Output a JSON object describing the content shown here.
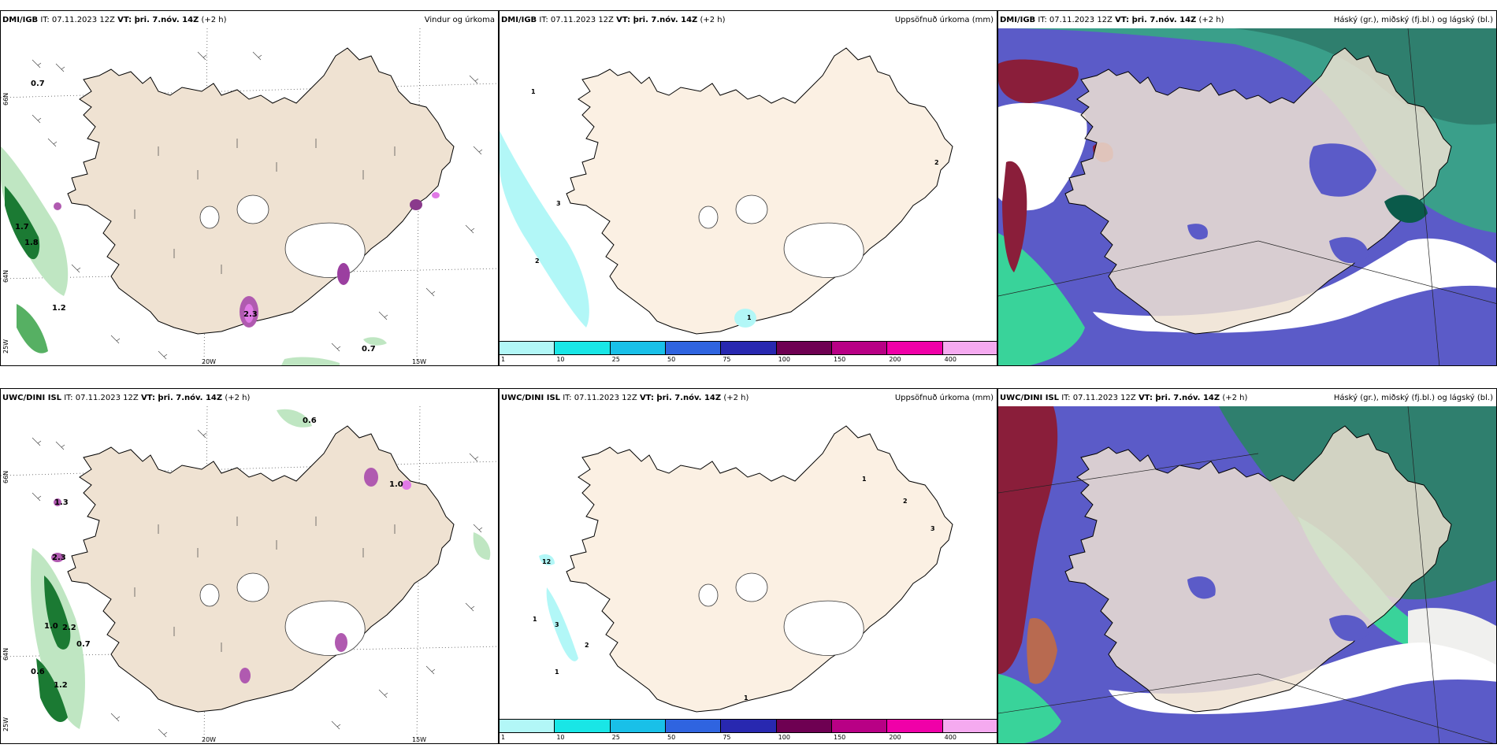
{
  "panels": [
    {
      "model": "DMI/IGB",
      "valid": "IT: 07.11.2023 12Z",
      "vt_label": "VT: þri. 7.nóv. 14Z",
      "lead": "(+2 h)",
      "right": "Vindur og úrkoma"
    },
    {
      "model": "DMI/IGB",
      "valid": "IT: 07.11.2023 12Z",
      "vt_label": "VT: þri. 7.nóv. 14Z",
      "lead": "(+2 h)",
      "right": "Uppsöfnuð úrkoma (mm)"
    },
    {
      "model": "DMI/IGB",
      "valid": "IT: 07.11.2023 12Z",
      "vt_label": "VT: þri. 7.nóv. 14Z",
      "lead": "(+2 h)",
      "right": "Háský (gr.), miðský (fj.bl.) og lágský (bl.)"
    },
    {
      "model": "UWC/DINI ISL",
      "valid": "IT: 07.11.2023 12Z",
      "vt_label": "VT: þri. 7.nóv. 14Z",
      "lead": "(+2 h)",
      "right": ""
    },
    {
      "model": "UWC/DINI ISL",
      "valid": "IT: 07.11.2023 12Z",
      "vt_label": "VT: þri. 7.nóv. 14Z",
      "lead": "(+2 h)",
      "right": "Uppsöfnuð úrkoma (mm)"
    },
    {
      "model": "UWC/DINI ISL",
      "valid": "IT: 07.11.2023 12Z",
      "vt_label": "VT: þri. 7.nóv. 14Z",
      "lead": "(+2 h)",
      "right": "Háský (gr.), miðský (fj.bl.) og lágský (bl.)"
    }
  ],
  "axis_labels": {
    "lon_20w": "20W",
    "lon_15w": "15W",
    "lat_66n": "66N",
    "lat_64n": "64N",
    "lon_25w": "25W"
  },
  "colorbar": {
    "labels": [
      "1",
      "10",
      "25",
      "50",
      "75",
      "100",
      "150",
      "200",
      "400"
    ],
    "colors": [
      "#b2f7f7",
      "#19e6e6",
      "#19c0e8",
      "#2f64e0",
      "#2828b0",
      "#6e0052",
      "#b80085",
      "#f000a8",
      "#f5aaf0"
    ]
  },
  "precip_labels_top_left": [
    "0.7",
    "1.7",
    "1.8",
    "1.2",
    "2.3",
    "0.7"
  ],
  "precip_labels_bottom_left": [
    "0.6",
    "1.3",
    "1.0",
    "2.2",
    "0.7",
    "0.6",
    "1.2",
    "2.3",
    "1.0"
  ],
  "acc_labels_top": [
    "1",
    "2",
    "3",
    "2",
    "1"
  ],
  "acc_labels_bottom": [
    "1",
    "2",
    "3",
    "1",
    "3",
    "2",
    "1",
    "12",
    "1"
  ],
  "colors": {
    "land": "#efe2d2",
    "land_light": "#fbf0e3",
    "ice": "#ffffff",
    "green_light": "#bfe6c2",
    "green_mid": "#56b063",
    "green_dark": "#0a5a22",
    "cloud_blue": "#5b5bc8",
    "cloud_teal": "#3a9f8a",
    "cloud_green": "#39d39a",
    "cloud_red": "#8a1e3a"
  }
}
